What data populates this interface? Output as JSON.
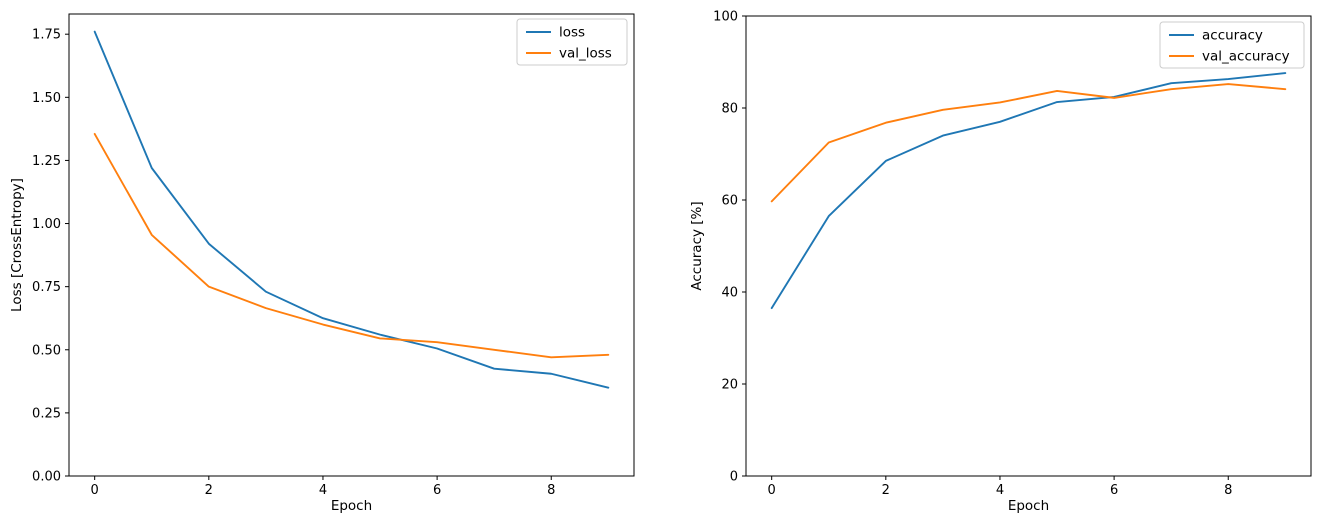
{
  "figure": {
    "background": "#ffffff",
    "text_color": "#000000",
    "frame_color": "#000000",
    "legend_border_color": "#cccccc"
  },
  "chart_data": [
    {
      "type": "line",
      "title": "",
      "xlabel": "Epoch",
      "ylabel": "Loss [CrossEntropy]",
      "x": [
        0,
        1,
        2,
        3,
        4,
        5,
        6,
        7,
        8,
        9
      ],
      "series": [
        {
          "name": "loss",
          "color": "#1f77b4",
          "values": [
            1.76,
            1.22,
            0.92,
            0.73,
            0.625,
            0.56,
            0.505,
            0.425,
            0.405,
            0.35
          ]
        },
        {
          "name": "val_loss",
          "color": "#ff7f0e",
          "values": [
            1.355,
            0.955,
            0.75,
            0.665,
            0.6,
            0.545,
            0.53,
            0.5,
            0.47,
            0.48
          ]
        }
      ],
      "xlim": [
        -0.45,
        9.45
      ],
      "ylim": [
        0,
        1.83
      ],
      "xticks": {
        "values": [
          0,
          2,
          4,
          6,
          8
        ],
        "labels": [
          "0",
          "2",
          "4",
          "6",
          "8"
        ]
      },
      "yticks": {
        "values": [
          0,
          0.25,
          0.5,
          0.75,
          1.0,
          1.25,
          1.5,
          1.75
        ],
        "labels": [
          "0.00",
          "0.25",
          "0.50",
          "0.75",
          "1.00",
          "1.25",
          "1.50",
          "1.75"
        ]
      },
      "legend": {
        "position": "upper right",
        "labels": [
          "loss",
          "val_loss"
        ]
      },
      "grid": false
    },
    {
      "type": "line",
      "title": "",
      "xlabel": "Epoch",
      "ylabel": "Accuracy [%]",
      "x": [
        0,
        1,
        2,
        3,
        4,
        5,
        6,
        7,
        8,
        9
      ],
      "series": [
        {
          "name": "accuracy",
          "color": "#1f77b4",
          "values": [
            36.5,
            56.5,
            68.5,
            74.0,
            77.0,
            81.3,
            82.4,
            85.4,
            86.3,
            87.6
          ]
        },
        {
          "name": "val_accuracy",
          "color": "#ff7f0e",
          "values": [
            59.7,
            72.5,
            76.8,
            79.6,
            81.2,
            83.7,
            82.2,
            84.1,
            85.2,
            84.1
          ]
        }
      ],
      "xlim": [
        -0.45,
        9.45
      ],
      "ylim": [
        0,
        100
      ],
      "xticks": {
        "values": [
          0,
          2,
          4,
          6,
          8
        ],
        "labels": [
          "0",
          "2",
          "4",
          "6",
          "8"
        ]
      },
      "yticks": {
        "values": [
          0,
          20,
          40,
          60,
          80,
          100
        ],
        "labels": [
          "0",
          "20",
          "40",
          "60",
          "80",
          "100"
        ]
      },
      "legend": {
        "position": "upper right",
        "labels": [
          "accuracy",
          "val_accuracy"
        ]
      },
      "grid": false
    }
  ]
}
